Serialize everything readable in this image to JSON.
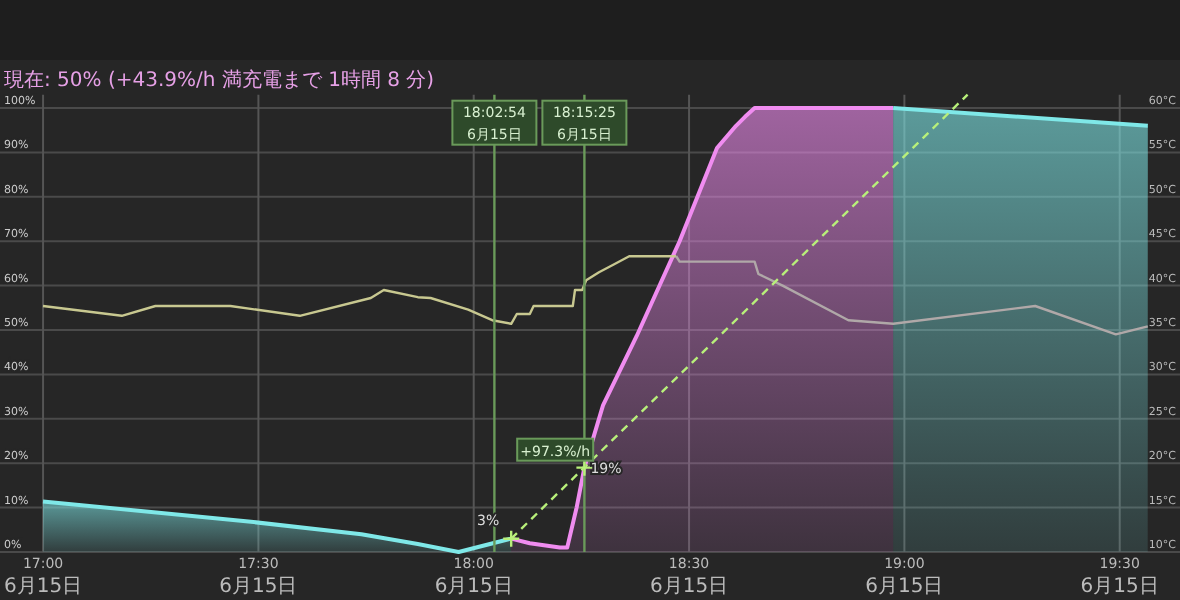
{
  "chart_data": {
    "type": "line",
    "subtitle": "現在: 50%  (+43.9%/h 満充電まで 1時間 8 分)",
    "grid": true,
    "xlim": [
      16.9,
      19.64
    ],
    "ylim": [
      0,
      103
    ],
    "y2lim": [
      10,
      61.5
    ],
    "xticks": [
      {
        "value": 17,
        "label": "17:00"
      },
      {
        "value": 17.5,
        "label": "17:30"
      },
      {
        "value": 18,
        "label": "18:00"
      },
      {
        "value": 18.5,
        "label": "18:30"
      },
      {
        "value": 19,
        "label": "19:00"
      },
      {
        "value": 19.5,
        "label": "19:30"
      }
    ],
    "yticks": [
      {
        "value": 0,
        "label": "0%"
      },
      {
        "value": 10,
        "label": "10%"
      },
      {
        "value": 20,
        "label": "20%"
      },
      {
        "value": 30,
        "label": "30%"
      },
      {
        "value": 40,
        "label": "40%"
      },
      {
        "value": 50,
        "label": "50%"
      },
      {
        "value": 60,
        "label": "60%"
      },
      {
        "value": 70,
        "label": "70%"
      },
      {
        "value": 80,
        "label": "80%"
      },
      {
        "value": 90,
        "label": "90%"
      },
      {
        "value": 100,
        "label": "100%"
      }
    ],
    "y2ticks": [
      {
        "value": 10,
        "label": "10°C"
      },
      {
        "value": 15,
        "label": "15°C"
      },
      {
        "value": 20,
        "label": "20°C"
      },
      {
        "value": 25,
        "label": "25°C"
      },
      {
        "value": 30,
        "label": "30°C"
      },
      {
        "value": 35,
        "label": "35°C"
      },
      {
        "value": 40,
        "label": "40°C"
      },
      {
        "value": 45,
        "label": "45°C"
      },
      {
        "value": 50,
        "label": "50°C"
      },
      {
        "value": 55,
        "label": "55°C"
      },
      {
        "value": 60,
        "label": "60°C"
      }
    ],
    "series": [
      {
        "type": "area",
        "color": "#7fe8e8",
        "x": [
          17,
          17.483,
          17.739,
          17.87,
          17.965,
          18.087
        ],
        "values": [
          11.4,
          6.8,
          4,
          1.8,
          0,
          3
        ]
      },
      {
        "type": "area",
        "color": "#f08cf0",
        "x": [
          18.087,
          18.13,
          18.2,
          18.217,
          18.239,
          18.257,
          18.3,
          18.378,
          18.478,
          18.565,
          18.609,
          18.63,
          18.652,
          18.974
        ],
        "values": [
          3,
          2,
          1,
          1,
          10,
          19,
          33,
          48.6,
          70,
          91,
          96,
          98,
          100,
          100
        ]
      },
      {
        "type": "area",
        "color": "#7fe8e8",
        "x": [
          18.974,
          19.565
        ],
        "values": [
          100,
          96
        ]
      },
      {
        "type": "line",
        "axis": "y2",
        "color": "#c8c890",
        "x": [
          17,
          17.183,
          17.261,
          17.435,
          17.596,
          17.761,
          17.791,
          17.87,
          17.9,
          17.987,
          18.043,
          18.087,
          18.1,
          18.13,
          18.139,
          18.23,
          18.235,
          18.252,
          18.261,
          18.291,
          18.326,
          18.361,
          18.39,
          18.47
        ],
        "values": [
          37.7,
          36.6,
          37.7,
          37.7,
          36.6,
          38.6,
          39.5,
          38.7,
          38.6,
          37.3,
          36.1,
          35.7,
          36.8,
          36.8,
          37.7,
          37.7,
          39.5,
          39.5,
          40.6,
          41.5,
          42.4,
          43.3,
          43.3,
          43.3
        ]
      },
      {
        "type": "line",
        "axis": "y2",
        "color": "#b0a8a8",
        "x": [
          18.47,
          18.478,
          18.652,
          18.661,
          18.717,
          18.87,
          18.974,
          19.304,
          19.491,
          19.565
        ],
        "values": [
          43.3,
          42.7,
          42.7,
          41.3,
          40,
          36.1,
          35.7,
          37.7,
          34.5,
          35.4
        ]
      },
      {
        "type": "line",
        "line_style": "dashed",
        "color": "#b8f07a",
        "x": [
          18.087,
          19.147
        ],
        "values": [
          3,
          103
        ]
      }
    ],
    "ref_lines": [
      {
        "axis": "x",
        "value": 18.048,
        "label": "18:02:54\n6月15日",
        "color": "#6a9a5a"
      },
      {
        "axis": "x",
        "value": 18.257,
        "label": "18:15:25\n6月15日",
        "color": "#6a9a5a"
      }
    ],
    "annotations": [
      {
        "text": "3%",
        "x": 18.087,
        "y": 3
      },
      {
        "text": "19%",
        "x": 18.257,
        "y": 19
      },
      "+97.3%/h",
      "6月15日",
      "6月15日",
      "6月15日",
      "6月15日",
      "6月15日",
      "6月15日"
    ]
  }
}
